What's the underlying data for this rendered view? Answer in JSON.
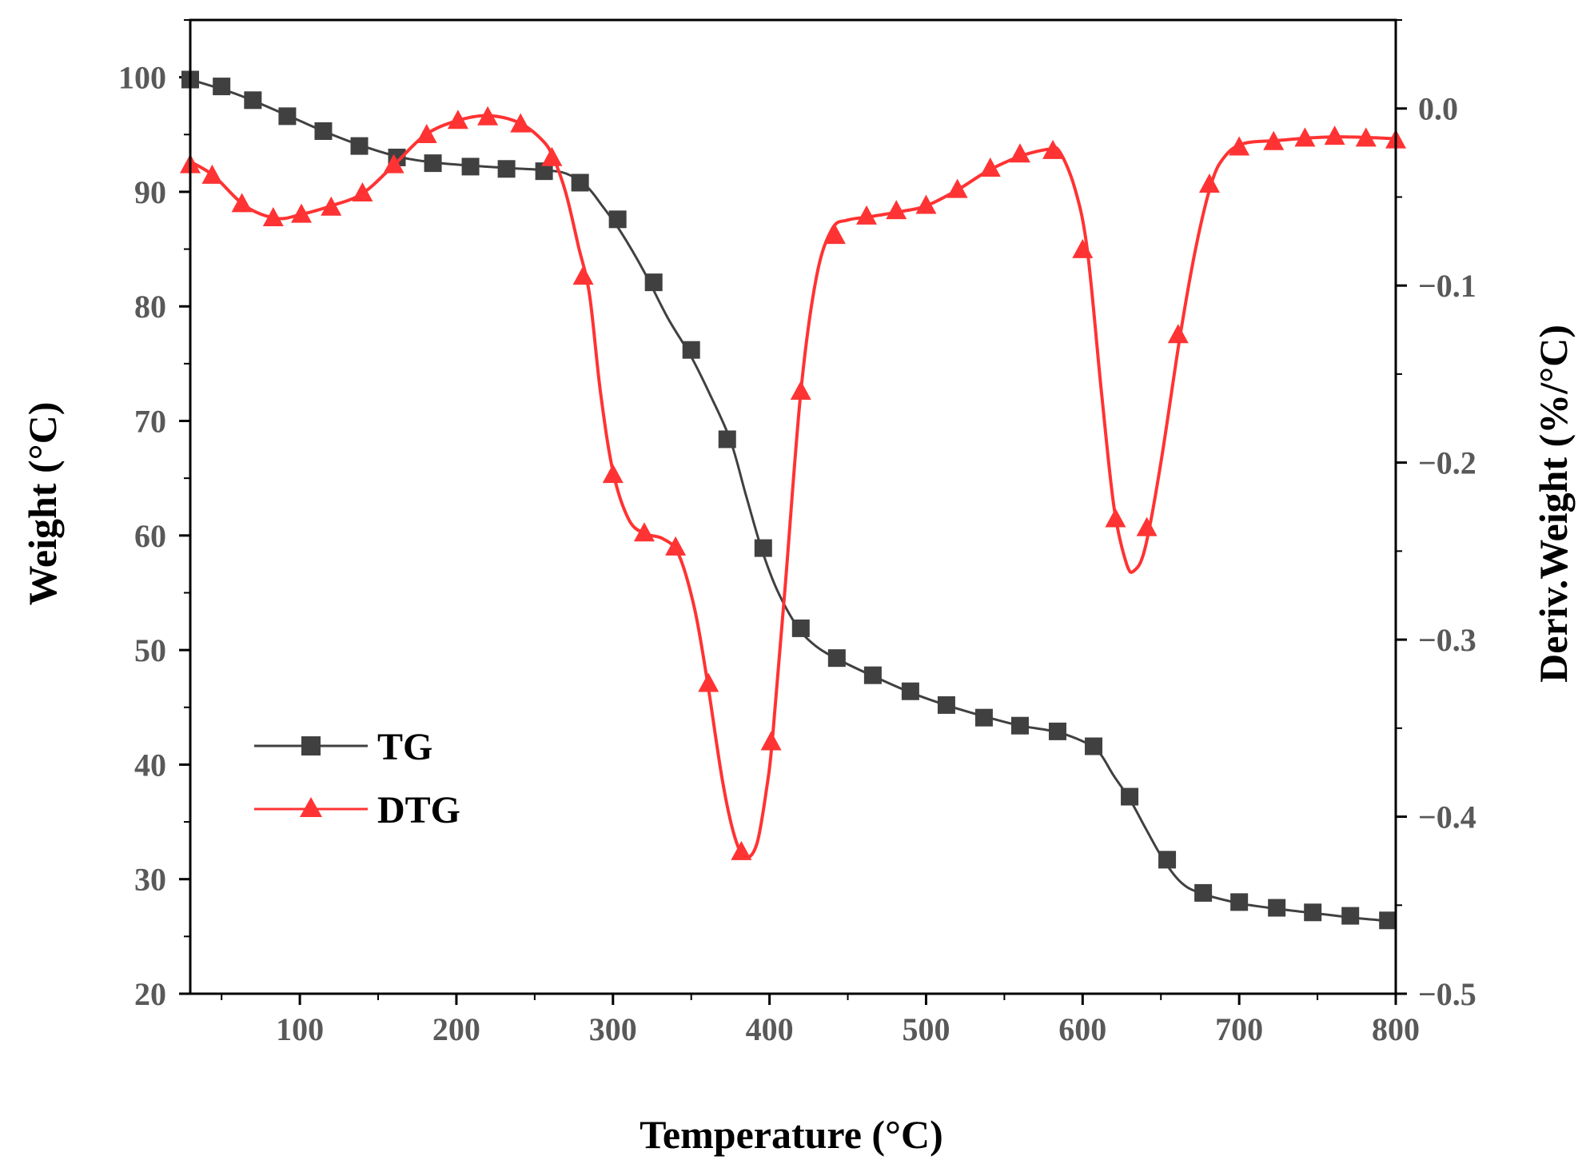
{
  "chart_data": {
    "type": "line",
    "title": "",
    "xlabel": "Temperature (°C)",
    "ylabel_left": "Weight (°C)",
    "ylabel_right": "Deriv.Weight (%/°C)",
    "xlim": [
      30,
      800
    ],
    "ylim_left": [
      20,
      105
    ],
    "ylim_right": [
      -0.5,
      0.05
    ],
    "x_ticks": [
      100,
      200,
      300,
      400,
      500,
      600,
      700,
      800
    ],
    "x_tick_labels": [
      "100",
      "200",
      "300",
      "400",
      "500",
      "600",
      "700",
      "800"
    ],
    "y_left_ticks": [
      20,
      30,
      40,
      50,
      60,
      70,
      80,
      90,
      100
    ],
    "y_left_tick_labels": [
      "20",
      "30",
      "40",
      "50",
      "60",
      "70",
      "80",
      "90",
      "100"
    ],
    "y_right_ticks": [
      -0.5,
      -0.4,
      -0.3,
      -0.2,
      -0.1,
      0.0
    ],
    "y_right_tick_labels": [
      "−0.5",
      "−0.4",
      "−0.3",
      "−0.2",
      "−0.1",
      "0.0"
    ],
    "grid": false,
    "legend_position": "bottom-left",
    "series": [
      {
        "name": "TG",
        "axis": "left",
        "marker": "square",
        "color": "#404040",
        "curve": [
          [
            30,
            99.8
          ],
          [
            60,
            98.5
          ],
          [
            90,
            96.8
          ],
          [
            115,
            95.3
          ],
          [
            140,
            94.0
          ],
          [
            165,
            93.0
          ],
          [
            190,
            92.5
          ],
          [
            230,
            92.1
          ],
          [
            255,
            91.9
          ],
          [
            270,
            91.6
          ],
          [
            283,
            90.5
          ],
          [
            293,
            88.8
          ],
          [
            305,
            86.5
          ],
          [
            320,
            83.0
          ],
          [
            335,
            79.0
          ],
          [
            350,
            75.6
          ],
          [
            362,
            72.3
          ],
          [
            375,
            68.3
          ],
          [
            385,
            63.5
          ],
          [
            395,
            58.8
          ],
          [
            405,
            55.2
          ],
          [
            418,
            52.0
          ],
          [
            430,
            50.3
          ],
          [
            445,
            49.1
          ],
          [
            465,
            47.8
          ],
          [
            490,
            46.3
          ],
          [
            515,
            45.1
          ],
          [
            540,
            44.1
          ],
          [
            560,
            43.4
          ],
          [
            585,
            42.8
          ],
          [
            605,
            41.7
          ],
          [
            612,
            40.8
          ],
          [
            620,
            39.0
          ],
          [
            630,
            37.0
          ],
          [
            640,
            34.5
          ],
          [
            652,
            31.6
          ],
          [
            663,
            29.7
          ],
          [
            675,
            28.8
          ],
          [
            700,
            27.9
          ],
          [
            725,
            27.4
          ],
          [
            750,
            27.0
          ],
          [
            775,
            26.6
          ],
          [
            800,
            26.3
          ]
        ],
        "markers": [
          [
            30,
            99.8
          ],
          [
            50,
            99.2
          ],
          [
            70,
            98.0
          ],
          [
            92,
            96.6
          ],
          [
            115,
            95.3
          ],
          [
            138,
            94.0
          ],
          [
            162,
            93.0
          ],
          [
            185,
            92.5
          ],
          [
            209,
            92.2
          ],
          [
            232,
            92.0
          ],
          [
            256,
            91.8
          ],
          [
            279,
            90.8
          ],
          [
            303,
            87.6
          ],
          [
            326,
            82.1
          ],
          [
            350,
            76.2
          ],
          [
            373,
            68.4
          ],
          [
            396,
            58.9
          ],
          [
            420,
            51.9
          ],
          [
            443,
            49.3
          ],
          [
            466,
            47.8
          ],
          [
            490,
            46.4
          ],
          [
            513,
            45.2
          ],
          [
            537,
            44.1
          ],
          [
            560,
            43.4
          ],
          [
            584,
            42.9
          ],
          [
            607,
            41.6
          ],
          [
            630,
            37.2
          ],
          [
            654,
            31.7
          ],
          [
            677,
            28.8
          ],
          [
            700,
            28.0
          ],
          [
            724,
            27.5
          ],
          [
            747,
            27.1
          ],
          [
            771,
            26.8
          ],
          [
            795,
            26.4
          ]
        ]
      },
      {
        "name": "DTG",
        "axis": "right",
        "marker": "triangle",
        "color": "#ff3333",
        "curve": [
          [
            30,
            -0.03
          ],
          [
            45,
            -0.038
          ],
          [
            65,
            -0.055
          ],
          [
            85,
            -0.062
          ],
          [
            100,
            -0.06
          ],
          [
            120,
            -0.055
          ],
          [
            140,
            -0.048
          ],
          [
            160,
            -0.032
          ],
          [
            180,
            -0.015
          ],
          [
            200,
            -0.007
          ],
          [
            220,
            -0.004
          ],
          [
            240,
            -0.008
          ],
          [
            255,
            -0.018
          ],
          [
            262,
            -0.028
          ],
          [
            270,
            -0.048
          ],
          [
            278,
            -0.078
          ],
          [
            285,
            -0.105
          ],
          [
            292,
            -0.16
          ],
          [
            300,
            -0.205
          ],
          [
            310,
            -0.232
          ],
          [
            320,
            -0.24
          ],
          [
            332,
            -0.243
          ],
          [
            342,
            -0.252
          ],
          [
            352,
            -0.282
          ],
          [
            360,
            -0.322
          ],
          [
            370,
            -0.38
          ],
          [
            378,
            -0.412
          ],
          [
            385,
            -0.423
          ],
          [
            392,
            -0.415
          ],
          [
            398,
            -0.385
          ],
          [
            402,
            -0.355
          ],
          [
            410,
            -0.27
          ],
          [
            420,
            -0.16
          ],
          [
            430,
            -0.095
          ],
          [
            440,
            -0.068
          ],
          [
            450,
            -0.063
          ],
          [
            465,
            -0.061
          ],
          [
            485,
            -0.058
          ],
          [
            500,
            -0.055
          ],
          [
            520,
            -0.046
          ],
          [
            540,
            -0.035
          ],
          [
            560,
            -0.027
          ],
          [
            578,
            -0.023
          ],
          [
            585,
            -0.024
          ],
          [
            595,
            -0.045
          ],
          [
            603,
            -0.08
          ],
          [
            612,
            -0.16
          ],
          [
            620,
            -0.225
          ],
          [
            628,
            -0.257
          ],
          [
            633,
            -0.261
          ],
          [
            640,
            -0.248
          ],
          [
            650,
            -0.2
          ],
          [
            662,
            -0.13
          ],
          [
            672,
            -0.08
          ],
          [
            682,
            -0.043
          ],
          [
            690,
            -0.028
          ],
          [
            702,
            -0.02
          ],
          [
            725,
            -0.018
          ],
          [
            760,
            -0.016
          ],
          [
            800,
            -0.017
          ]
        ],
        "markers": [
          [
            30,
            -0.032
          ],
          [
            44,
            -0.038
          ],
          [
            63,
            -0.054
          ],
          [
            83,
            -0.062
          ],
          [
            101,
            -0.06
          ],
          [
            120,
            -0.056
          ],
          [
            140,
            -0.048
          ],
          [
            160,
            -0.032
          ],
          [
            181,
            -0.015
          ],
          [
            201,
            -0.007
          ],
          [
            220,
            -0.005
          ],
          [
            241,
            -0.009
          ],
          [
            261,
            -0.028
          ],
          [
            281,
            -0.095
          ],
          [
            300,
            -0.207
          ],
          [
            320,
            -0.24
          ],
          [
            340,
            -0.248
          ],
          [
            361,
            -0.325
          ],
          [
            382,
            -0.42
          ],
          [
            401,
            -0.358
          ],
          [
            420,
            -0.16
          ],
          [
            442,
            -0.072
          ],
          [
            462,
            -0.061
          ],
          [
            481,
            -0.058
          ],
          [
            500,
            -0.055
          ],
          [
            520,
            -0.046
          ],
          [
            541,
            -0.034
          ],
          [
            560,
            -0.026
          ],
          [
            581,
            -0.024
          ],
          [
            600,
            -0.08
          ],
          [
            621,
            -0.232
          ],
          [
            641,
            -0.237
          ],
          [
            661,
            -0.128
          ],
          [
            681,
            -0.043
          ],
          [
            700,
            -0.022
          ],
          [
            722,
            -0.019
          ],
          [
            742,
            -0.017
          ],
          [
            761,
            -0.016
          ],
          [
            781,
            -0.017
          ],
          [
            800,
            -0.018
          ]
        ]
      }
    ]
  }
}
